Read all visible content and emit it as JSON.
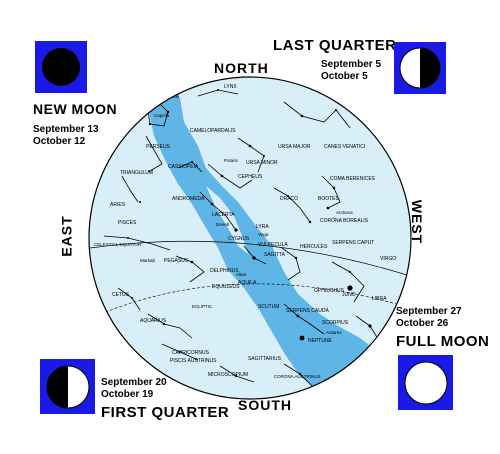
{
  "directions": {
    "north": "NORTH",
    "south": "SOUTH",
    "east": "EAST",
    "west": "WEST"
  },
  "phases": {
    "new_moon": {
      "name": "NEW MOON",
      "dates": [
        "September 13",
        "October 12"
      ]
    },
    "last_quarter": {
      "name": "LAST QUARTER",
      "dates": [
        "September 5",
        "October 5"
      ]
    },
    "full_moon": {
      "name": "FULL MOON",
      "dates": [
        "September 27",
        "October 26"
      ]
    },
    "first_quarter": {
      "name": "FIRST QUARTER",
      "dates": [
        "September 20",
        "October 19"
      ]
    }
  },
  "colors": {
    "phase_box": "#1a1ae6",
    "milky_way": "#5fb6e6",
    "map_bg": "#d8eef8"
  },
  "constellations": [
    "AURIGA",
    "Capella",
    "LYNX",
    "CAMELOPARDALIS",
    "PERSEUS",
    "URSA MAJOR",
    "CANES VENATICI",
    "Polaris",
    "URSA MINOR",
    "COMA BERENICES",
    "CASSIOPEIA",
    "CEPHEUS",
    "TRIANGULUM",
    "ANDROMEDA",
    "DRACO",
    "BOOTES",
    "Arcturus",
    "ARIES",
    "CORONA BOREALIS",
    "LACERTA",
    "Deneb",
    "LYRA",
    "PISCES",
    "CYGNUS",
    "Vega",
    "HERCULES",
    "SERPENS CAPUT",
    "VULPECULA",
    "SAGITTA",
    "CELESTIAL EQUATOR",
    "Markab",
    "PEGASUS",
    "DELPHINUS",
    "Altair",
    "AQUILA",
    "EQUULEUS",
    "OPHIUCHUS",
    "VIRGO",
    "CETUS",
    "SCUTUM",
    "SERPENS CAUDA",
    "LIBRA",
    "AQUARIUS",
    "ECLIPTIC",
    "SCORPIUS",
    "Antares",
    "CAPRICORNUS",
    "PISCIS AUSTRINUS",
    "NEPTUNE",
    "SAGITTARIUS",
    "MICROSCOPIUM",
    "CORONA AUSTRINUS",
    "JUNO"
  ]
}
